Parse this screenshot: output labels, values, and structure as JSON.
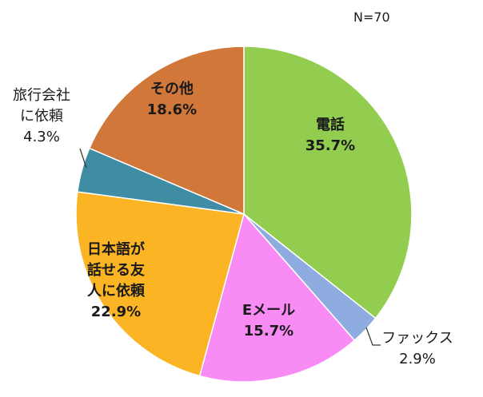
{
  "chart_data": {
    "type": "pie",
    "note": "N=70",
    "start_angle_deg": 0,
    "direction": "clockwise",
    "slices": [
      {
        "name": "電話",
        "lines": [
          "電話"
        ],
        "value": 35.7,
        "label": "35.7%",
        "color": "#92cd50",
        "placement": "inside"
      },
      {
        "name": "ファックス",
        "lines": [
          "ファックス"
        ],
        "value": 2.9,
        "label": "2.9%",
        "color": "#8eacdf",
        "placement": "outside-bottom-right"
      },
      {
        "name": "Eメール",
        "lines": [
          "Eメール"
        ],
        "value": 15.7,
        "label": "15.7%",
        "color": "#f98bf5",
        "placement": "inside"
      },
      {
        "name": "日本語が話せる友人に依頼",
        "lines": [
          "日本語が",
          "話せる友",
          "人に依頼"
        ],
        "value": 22.9,
        "label": "22.9%",
        "color": "#fbb424",
        "placement": "inside-left"
      },
      {
        "name": "旅行会社に依頼",
        "lines": [
          "旅行会社",
          "に依頼"
        ],
        "value": 4.3,
        "label": "4.3%",
        "color": "#3f8da5",
        "placement": "outside-top-left"
      },
      {
        "name": "その他",
        "lines": [
          "その他"
        ],
        "value": 18.6,
        "label": "18.6%",
        "color": "#d2773a",
        "placement": "inside"
      }
    ]
  }
}
